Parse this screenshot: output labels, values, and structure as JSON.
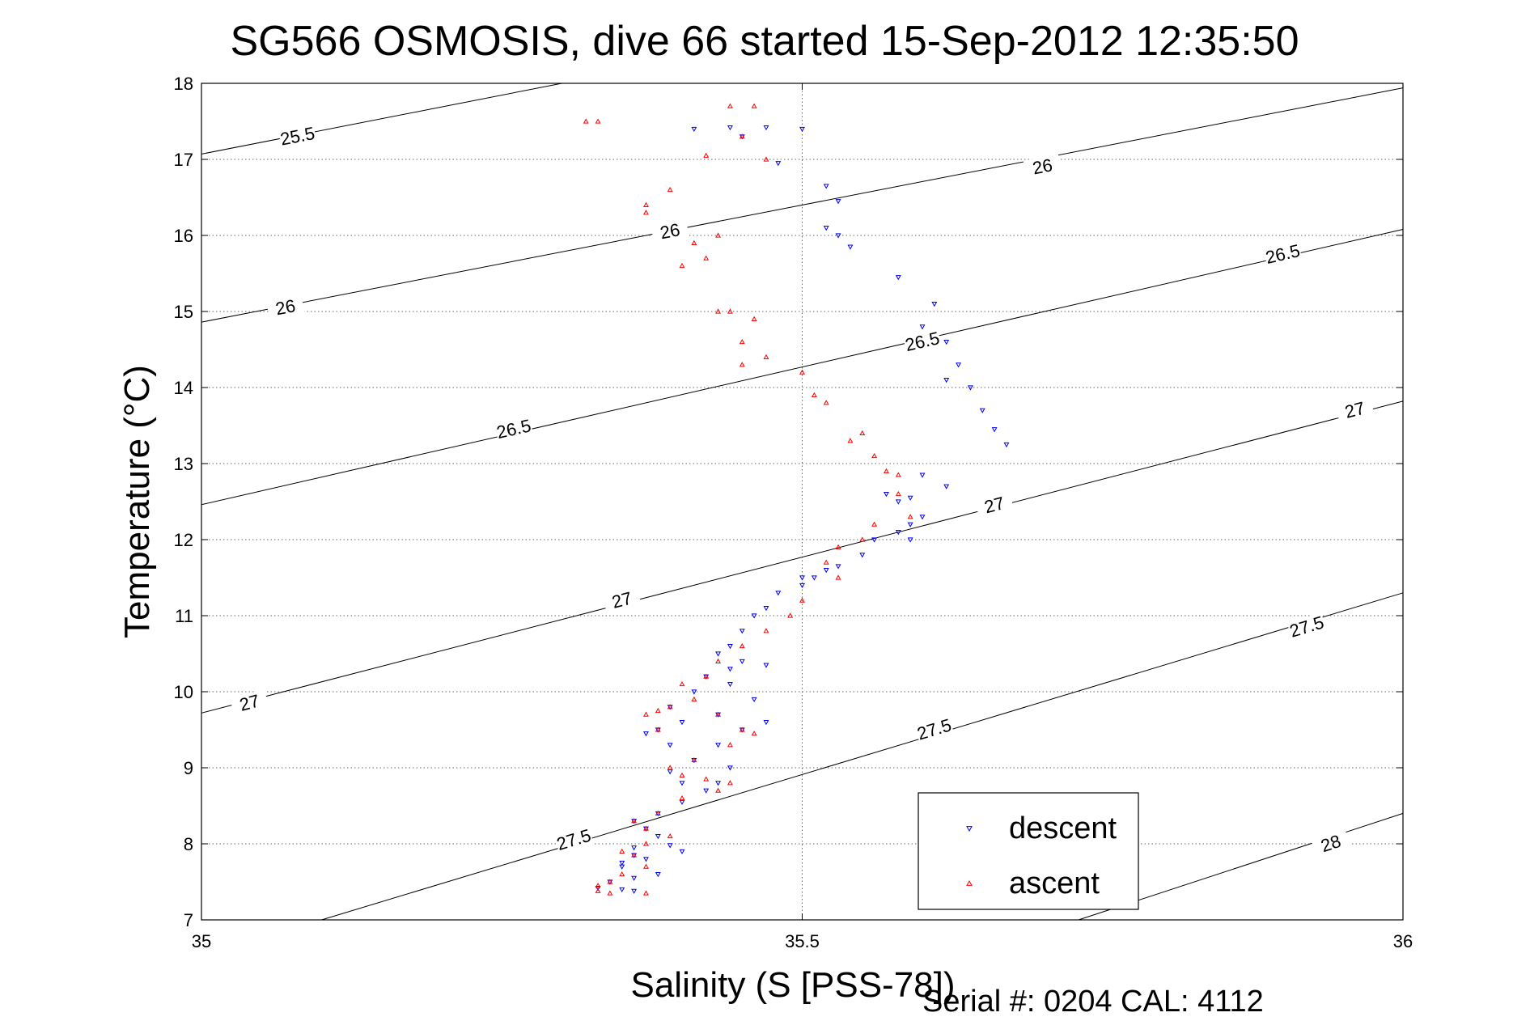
{
  "chart_data": {
    "type": "scatter",
    "title": "SG566 OSMOSIS, dive 66 started 15-Sep-2012 12:35:50",
    "xlabel": "Salinity (S [PSS-78])",
    "ylabel": "Temperature (°C)",
    "footer": "Serial #: 0204  CAL: 4112",
    "xlim": [
      35,
      36
    ],
    "ylim": [
      7,
      18
    ],
    "xticks": [
      35,
      35.5,
      36
    ],
    "xtick_labels": [
      "35",
      "35.5",
      "36"
    ],
    "yticks": [
      7,
      8,
      9,
      10,
      11,
      12,
      13,
      14,
      15,
      16,
      17,
      18
    ],
    "ytick_labels": [
      "7",
      "8",
      "9",
      "10",
      "11",
      "12",
      "13",
      "14",
      "15",
      "16",
      "17",
      "18"
    ],
    "grid": true,
    "legend_position": "bottom-right",
    "contours": [
      {
        "level": "25.5",
        "x": [
          35.0,
          35.3
        ],
        "y": [
          17.07,
          18.0
        ],
        "labels": [
          [
            35.08,
            17.3
          ]
        ]
      },
      {
        "level": "26",
        "x": [
          35.0,
          36.0
        ],
        "y": [
          14.86,
          17.94
        ],
        "labels": [
          [
            35.07,
            15.05
          ],
          [
            35.39,
            16.05
          ],
          [
            35.7,
            16.9
          ]
        ]
      },
      {
        "level": "26.5",
        "x": [
          35.0,
          36.0
        ],
        "y": [
          12.46,
          16.08
        ],
        "labels": [
          [
            35.26,
            13.45
          ],
          [
            35.6,
            14.6
          ],
          [
            35.9,
            15.75
          ]
        ]
      },
      {
        "level": "27",
        "x": [
          35.0,
          36.0
        ],
        "y": [
          9.72,
          13.82
        ],
        "labels": [
          [
            35.04,
            9.85
          ],
          [
            35.35,
            11.2
          ],
          [
            35.66,
            12.45
          ],
          [
            35.96,
            13.7
          ]
        ]
      },
      {
        "level": "27.5",
        "x": [
          35.1,
          36.0
        ],
        "y": [
          7.0,
          11.3
        ],
        "labels": [
          [
            35.31,
            8.05
          ],
          [
            35.61,
            9.5
          ],
          [
            35.92,
            10.85
          ]
        ]
      },
      {
        "level": "28",
        "x": [
          35.73,
          36.0
        ],
        "y": [
          7.0,
          8.4
        ],
        "labels": [
          [
            35.94,
            8.0
          ]
        ]
      }
    ],
    "series": [
      {
        "name": "descent",
        "color": "#0000ff",
        "marker": "triangle-down",
        "x": [
          35.41,
          35.44,
          35.45,
          35.47,
          35.48,
          35.5,
          35.52,
          35.53,
          35.52,
          35.53,
          35.54,
          35.58,
          35.61,
          35.6,
          35.62,
          35.63,
          35.62,
          35.64,
          35.65,
          35.66,
          35.67,
          35.6,
          35.62,
          35.57,
          35.58,
          35.59,
          35.59,
          35.6,
          35.58,
          35.59,
          35.56,
          35.55,
          35.52,
          35.53,
          35.51,
          35.5,
          35.5,
          35.48,
          35.47,
          35.46,
          35.45,
          35.44,
          35.43,
          35.47,
          35.45,
          35.44,
          35.42,
          35.41,
          35.39,
          35.44,
          35.46,
          35.47,
          35.45,
          35.43,
          35.4,
          35.38,
          35.37,
          35.39,
          35.43,
          35.41,
          35.44,
          35.39,
          35.4,
          35.43,
          35.42,
          35.4,
          35.38,
          35.36,
          35.37,
          35.38,
          35.39,
          35.4,
          35.36,
          35.37,
          35.35,
          35.36,
          35.38,
          35.35,
          35.36,
          35.34,
          35.33,
          35.35,
          35.36
        ],
        "y": [
          17.4,
          17.42,
          17.3,
          17.42,
          16.95,
          17.4,
          16.65,
          16.45,
          16.1,
          16.0,
          15.85,
          15.45,
          15.1,
          14.8,
          14.6,
          14.3,
          14.1,
          14.0,
          13.7,
          13.45,
          13.25,
          12.85,
          12.7,
          12.6,
          12.5,
          12.55,
          12.2,
          12.3,
          12.1,
          12.0,
          12.0,
          11.8,
          11.6,
          11.65,
          11.5,
          11.4,
          11.5,
          11.3,
          11.1,
          11.0,
          10.8,
          10.6,
          10.5,
          10.35,
          10.4,
          10.3,
          10.2,
          10.0,
          9.8,
          10.1,
          9.9,
          9.6,
          9.5,
          9.7,
          9.6,
          9.5,
          9.45,
          9.3,
          9.3,
          9.1,
          9.0,
          8.95,
          8.8,
          8.8,
          8.7,
          8.55,
          8.4,
          8.3,
          8.2,
          8.1,
          7.98,
          7.9,
          7.85,
          7.8,
          7.75,
          7.95,
          7.6,
          7.7,
          7.55,
          7.5,
          7.42,
          7.4,
          7.38
        ]
      },
      {
        "name": "ascent",
        "color": "#ff0000",
        "marker": "triangle-up",
        "x": [
          35.32,
          35.33,
          35.44,
          35.46,
          35.45,
          35.47,
          35.42,
          35.39,
          35.37,
          35.37,
          35.43,
          35.41,
          35.42,
          35.4,
          35.43,
          35.44,
          35.45,
          35.47,
          35.46,
          35.45,
          35.5,
          35.51,
          35.52,
          35.55,
          35.54,
          35.56,
          35.57,
          35.58,
          35.58,
          35.59,
          35.56,
          35.55,
          35.53,
          35.52,
          35.53,
          35.5,
          35.49,
          35.47,
          35.45,
          35.43,
          35.42,
          35.4,
          35.41,
          35.39,
          35.38,
          35.37,
          35.38,
          35.43,
          35.45,
          35.46,
          35.44,
          35.41,
          35.39,
          35.4,
          35.42,
          35.43,
          35.44,
          35.4,
          35.38,
          35.36,
          35.37,
          35.39,
          35.37,
          35.35,
          35.36,
          35.37,
          35.35,
          35.34,
          35.33,
          35.33,
          35.34,
          35.37
        ],
        "y": [
          17.5,
          17.5,
          17.7,
          17.7,
          17.3,
          17.0,
          17.05,
          16.6,
          16.3,
          16.4,
          16.0,
          15.9,
          15.7,
          15.6,
          15.0,
          15.0,
          14.6,
          14.4,
          14.9,
          14.3,
          14.2,
          13.9,
          13.8,
          13.4,
          13.3,
          13.1,
          12.9,
          12.85,
          12.6,
          12.3,
          12.2,
          12.0,
          11.9,
          11.7,
          11.5,
          11.2,
          11.0,
          10.8,
          10.6,
          10.4,
          10.2,
          10.1,
          9.9,
          9.8,
          9.75,
          9.7,
          9.5,
          9.7,
          9.5,
          9.45,
          9.3,
          9.1,
          9.0,
          8.9,
          8.85,
          8.7,
          8.8,
          8.6,
          8.4,
          8.3,
          8.2,
          8.1,
          8.0,
          7.9,
          7.85,
          7.7,
          7.6,
          7.5,
          7.45,
          7.38,
          7.35,
          7.35
        ]
      }
    ]
  }
}
